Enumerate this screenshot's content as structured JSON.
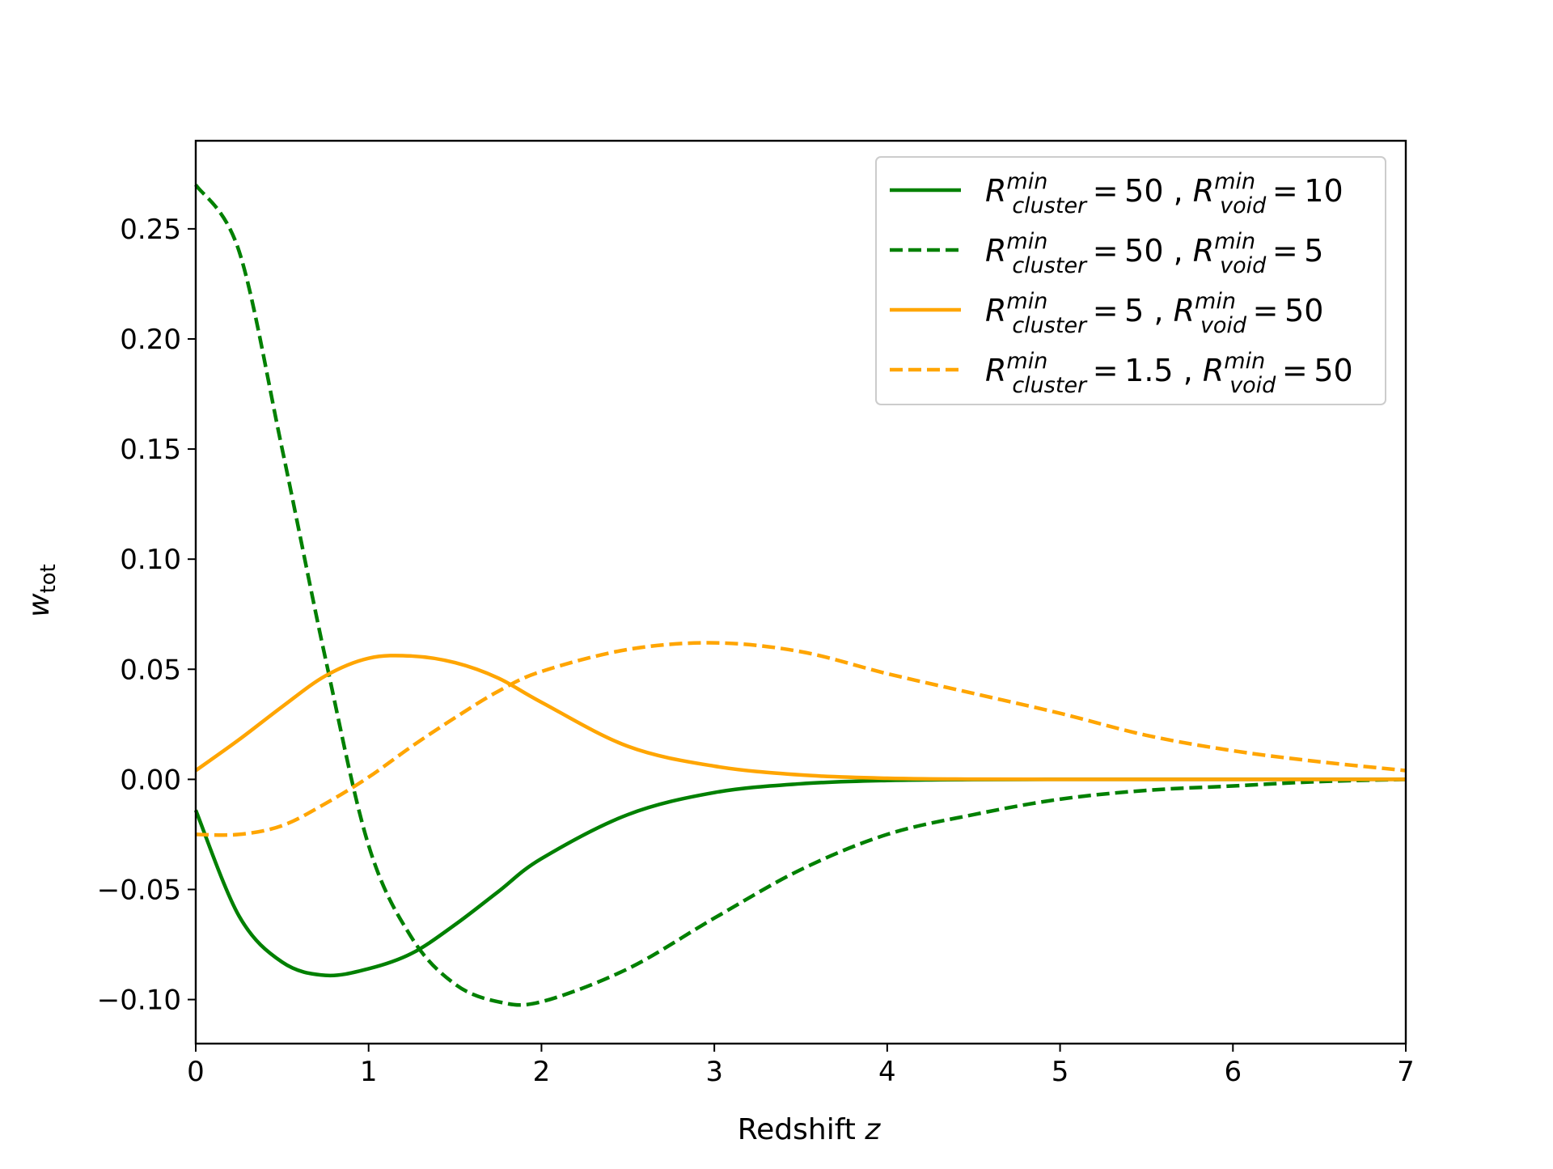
{
  "chart_data": {
    "type": "line",
    "xlabel_text": "Redshift ",
    "xlabel_var": "z",
    "ylabel_base": "w",
    "ylabel_sub": "tot",
    "xlim": [
      0,
      7
    ],
    "ylim": [
      -0.12,
      0.29
    ],
    "xticks": [
      0,
      1,
      2,
      3,
      4,
      5,
      6,
      7
    ],
    "xtick_labels": [
      "0",
      "1",
      "2",
      "3",
      "4",
      "5",
      "6",
      "7"
    ],
    "yticks": [
      -0.1,
      -0.05,
      0.0,
      0.05,
      0.1,
      0.15,
      0.2,
      0.25
    ],
    "ytick_labels": [
      "−0.10",
      "−0.05",
      "0.00",
      "0.05",
      "0.10",
      "0.15",
      "0.20",
      "0.25"
    ],
    "grid": false,
    "legend_position": "top-right",
    "x": [
      0,
      0.25,
      0.5,
      0.75,
      1.0,
      1.25,
      1.5,
      1.75,
      2.0,
      2.5,
      3.0,
      3.5,
      4.0,
      4.5,
      5.0,
      5.5,
      6.0,
      6.5,
      7.0
    ],
    "series": [
      {
        "legend": {
          "c_val": "50",
          "v_val": "10"
        },
        "color": "#008000",
        "dash": "solid",
        "values": [
          -0.014,
          -0.062,
          -0.083,
          -0.089,
          -0.086,
          -0.079,
          -0.066,
          -0.051,
          -0.036,
          -0.016,
          -0.006,
          -0.002,
          -0.0005,
          -0.0001,
          0.0,
          0.0,
          0.0,
          0.0,
          0.0
        ]
      },
      {
        "legend": {
          "c_val": "50",
          "v_val": "5"
        },
        "color": "#008000",
        "dash": "dashed",
        "values": [
          0.27,
          0.24,
          0.15,
          0.055,
          -0.03,
          -0.072,
          -0.093,
          -0.101,
          -0.101,
          -0.086,
          -0.063,
          -0.041,
          -0.025,
          -0.016,
          -0.009,
          -0.005,
          -0.003,
          -0.001,
          0.0
        ]
      },
      {
        "legend": {
          "c_val": "5",
          "v_val": "50"
        },
        "color": "#ffa500",
        "dash": "solid",
        "values": [
          0.004,
          0.018,
          0.033,
          0.047,
          0.055,
          0.056,
          0.053,
          0.046,
          0.035,
          0.015,
          0.006,
          0.002,
          0.0005,
          0.0001,
          0.0,
          0.0,
          0.0,
          0.0,
          0.0
        ]
      },
      {
        "legend": {
          "c_val": "1.5",
          "v_val": "50"
        },
        "color": "#ffa500",
        "dash": "dashed",
        "values": [
          -0.025,
          -0.025,
          -0.021,
          -0.011,
          0.001,
          0.015,
          0.028,
          0.04,
          0.049,
          0.059,
          0.062,
          0.058,
          0.048,
          0.039,
          0.03,
          0.02,
          0.013,
          0.008,
          0.004
        ]
      }
    ],
    "legend_R": "R",
    "legend_sup": "min",
    "legend_cluster_sub": "cluster",
    "legend_void_sub": "void",
    "legend_eq": " = ",
    "legend_sep": " , "
  }
}
